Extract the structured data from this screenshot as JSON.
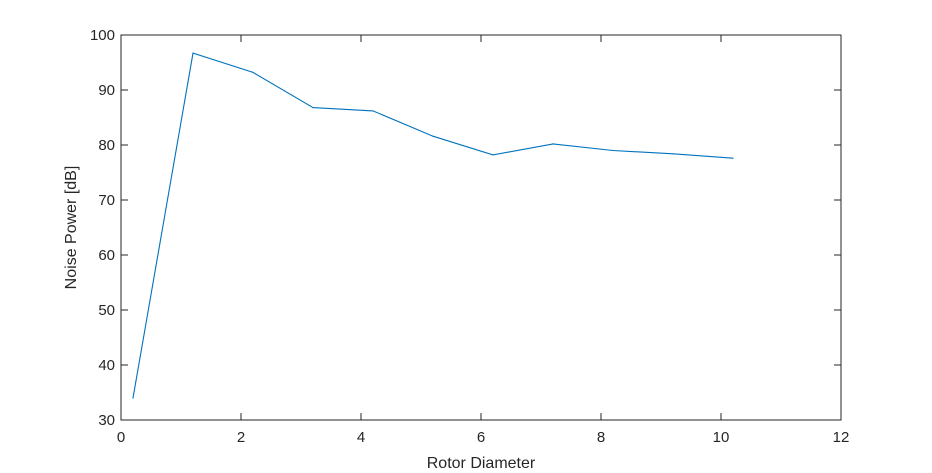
{
  "chart_data": {
    "type": "line",
    "title": "",
    "xlabel": "Rotor Diameter",
    "ylabel": "Noise Power [dB]",
    "xlim": [
      0,
      12
    ],
    "ylim": [
      30,
      100
    ],
    "xticks": [
      0,
      2,
      4,
      6,
      8,
      10,
      12
    ],
    "yticks": [
      30,
      40,
      50,
      60,
      70,
      80,
      90,
      100
    ],
    "grid": false,
    "box": true,
    "series": [
      {
        "color": "#0072BD",
        "x": [
          0.2,
          1.2,
          2.2,
          3.2,
          4.2,
          5.2,
          6.2,
          7.2,
          8.2,
          9.2,
          10.2
        ],
        "y": [
          34.0,
          96.7,
          93.2,
          86.8,
          86.2,
          81.6,
          78.2,
          80.2,
          79.0,
          78.4,
          77.6
        ]
      }
    ]
  }
}
